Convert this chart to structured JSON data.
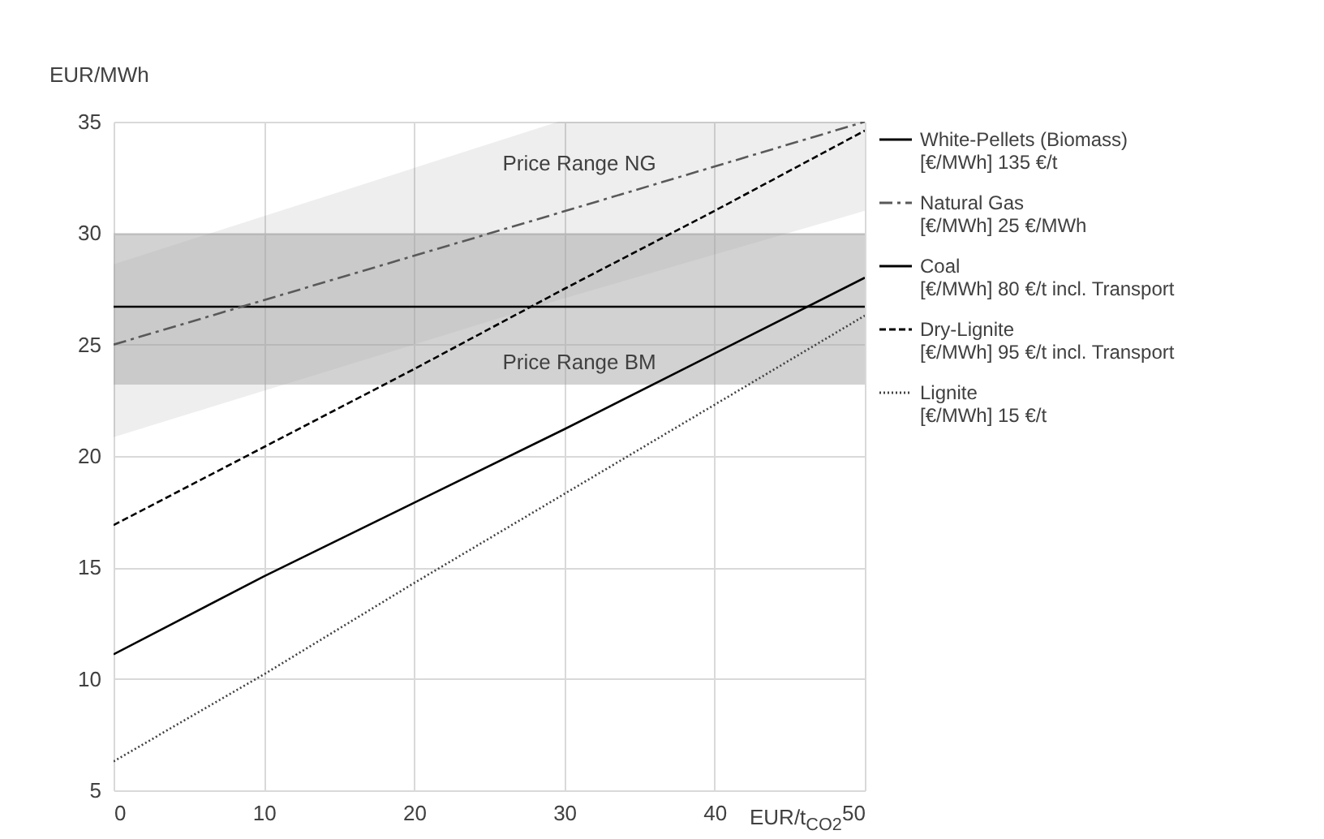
{
  "chart_data": {
    "type": "line",
    "xlabel": "EUR/t$_{CO2}$",
    "ylabel": "EUR/MWh",
    "xlim": [
      0,
      50
    ],
    "xticks": [
      0,
      10,
      20,
      30,
      40,
      50
    ],
    "ylim": [
      5,
      35
    ],
    "yticks": [
      5,
      10,
      15,
      20,
      25,
      30,
      35
    ],
    "grid": true,
    "legend": "right",
    "series": [
      {
        "name": "White-Pellets (Biomass)\n[€/MWh] 135 €/t",
        "color": "#000000",
        "line_style": "solid",
        "x": [
          0,
          50
        ],
        "values": [
          26.7,
          26.7
        ]
      },
      {
        "name": "Natural Gas\n[€/MWh] 25 €/MWh",
        "color": "#595959",
        "line_style": "dashdot",
        "x": [
          0,
          29.6,
          50
        ],
        "values": [
          25,
          30.9,
          35
        ],
        "lower": [
          20.85,
          27.0,
          31.0
        ],
        "upper": [
          28.6,
          35,
          35
        ]
      },
      {
        "name": "Coal\n[€/MWh] 80 €/t incl. Transport",
        "color": "#000000",
        "line_style": "solid",
        "x": [
          0,
          10,
          20,
          30,
          40,
          50
        ],
        "values": [
          11.1,
          14.6,
          17.9,
          21.2,
          24.6,
          28.0
        ]
      },
      {
        "name": "Dry-Lignite\n[€/MWh] 95 €/t incl. Transport",
        "color": "#000000",
        "line_style": "dashed",
        "x": [
          0,
          10,
          20,
          30,
          40,
          50
        ],
        "values": [
          16.9,
          20.4,
          23.9,
          27.5,
          31.0,
          34.6
        ]
      },
      {
        "name": "Lignite\n[€/MWh] 15 €/t",
        "color": "#404040",
        "line_style": "dotted",
        "x": [
          0,
          10,
          20,
          30,
          40,
          50
        ],
        "values": [
          6.3,
          10.2,
          14.3,
          18.3,
          22.3,
          26.3
        ]
      }
    ],
    "bands": [
      {
        "axis": "y",
        "from": 23.2,
        "to": 30,
        "color": "#a6a6a6"
      }
    ],
    "annotations": [
      "Price Range NG",
      "Price Range BM"
    ]
  }
}
